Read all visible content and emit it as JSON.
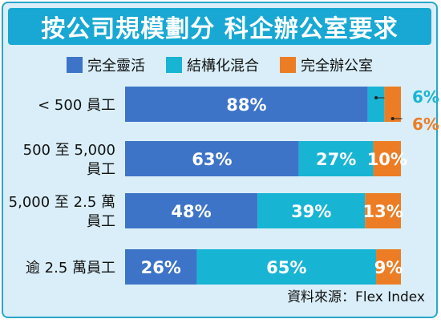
{
  "header": {
    "title": "按公司規模劃分 科企辦公室要求"
  },
  "colors": {
    "series1": "#3d74c8",
    "series2": "#18b4d4",
    "series3": "#ec7d25",
    "label_orange": "#ec7d25",
    "label_cyan": "#18b4d4"
  },
  "chart_data": {
    "type": "bar",
    "orientation": "horizontal",
    "stacked": true,
    "title": "按公司規模劃分 科企辦公室要求",
    "categories": [
      [
        "< 500 員工"
      ],
      [
        "500 至 5,000",
        "員工"
      ],
      [
        "5,000 至 2.5 萬",
        "員工"
      ],
      [
        "逾 2.5 萬員工"
      ]
    ],
    "series": [
      {
        "name": "完全靈活",
        "values": [
          88,
          63,
          48,
          26
        ],
        "labels": [
          "88%",
          "63%",
          "48%",
          "26%"
        ]
      },
      {
        "name": "結構化混合",
        "values": [
          6,
          27,
          39,
          65
        ],
        "labels": [
          "6%",
          "27%",
          "39%",
          "65%"
        ]
      },
      {
        "name": "完全辦公室",
        "values": [
          6,
          10,
          13,
          9
        ],
        "labels": [
          "6%",
          "10%",
          "13%",
          "9%"
        ]
      }
    ],
    "xlim": [
      0,
      100
    ]
  },
  "footer": {
    "source": "資料來源：Flex Index"
  }
}
